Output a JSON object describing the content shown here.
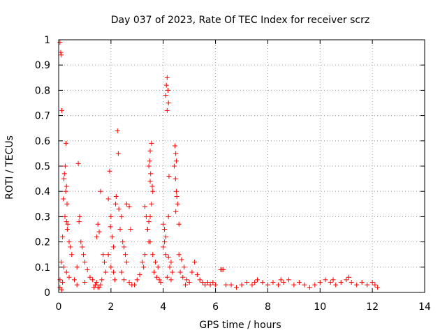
{
  "chart_data": {
    "type": "scatter",
    "title": "Day 037 of 2023, Rate Of TEC Index for receiver scrz",
    "xlabel": "GPS time / hours",
    "ylabel": "ROTI / TECUs",
    "xlim": [
      0,
      14
    ],
    "ylim": [
      0,
      1
    ],
    "x_ticks": [
      "0",
      "2",
      "4",
      "6",
      "8",
      "10",
      "12",
      "14"
    ],
    "y_ticks": [
      "0",
      "0.1",
      "0.2",
      "0.3",
      "0.4",
      "0.5",
      "0.6",
      "0.7",
      "0.8",
      "0.9",
      "1"
    ],
    "grid": true,
    "marker": "plus",
    "color": "#ff0000",
    "series": [
      {
        "name": "ROTI",
        "points": [
          [
            0.05,
            0.99
          ],
          [
            0.08,
            0.95
          ],
          [
            0.1,
            0.94
          ],
          [
            0.12,
            0.72
          ],
          [
            0.28,
            0.59
          ],
          [
            0.25,
            0.5
          ],
          [
            0.22,
            0.47
          ],
          [
            0.2,
            0.45
          ],
          [
            0.3,
            0.42
          ],
          [
            0.27,
            0.4
          ],
          [
            0.18,
            0.37
          ],
          [
            0.32,
            0.35
          ],
          [
            0.24,
            0.3
          ],
          [
            0.3,
            0.28
          ],
          [
            0.35,
            0.27
          ],
          [
            0.33,
            0.25
          ],
          [
            0.15,
            0.22
          ],
          [
            0.4,
            0.2
          ],
          [
            0.45,
            0.18
          ],
          [
            0.5,
            0.15
          ],
          [
            0.1,
            0.12
          ],
          [
            0.2,
            0.1
          ],
          [
            0.3,
            0.08
          ],
          [
            0.4,
            0.06
          ],
          [
            0.05,
            0.05
          ],
          [
            0.15,
            0.04
          ],
          [
            0.6,
            0.05
          ],
          [
            0.7,
            0.03
          ],
          [
            0.05,
            0.02
          ],
          [
            0.12,
            0.01
          ],
          [
            0.75,
            0.51
          ],
          [
            0.8,
            0.3
          ],
          [
            0.78,
            0.28
          ],
          [
            0.85,
            0.2
          ],
          [
            0.9,
            0.18
          ],
          [
            0.95,
            0.15
          ],
          [
            1.0,
            0.12
          ],
          [
            0.7,
            0.1
          ],
          [
            1.1,
            0.09
          ],
          [
            1.2,
            0.06
          ],
          [
            1.3,
            0.05
          ],
          [
            1.0,
            0.04
          ],
          [
            1.4,
            0.03
          ],
          [
            1.5,
            0.02
          ],
          [
            1.6,
            0.03
          ],
          [
            1.45,
            0.04
          ],
          [
            1.55,
            0.02
          ],
          [
            1.35,
            0.02
          ],
          [
            1.5,
            0.27
          ],
          [
            1.6,
            0.4
          ],
          [
            1.55,
            0.24
          ],
          [
            1.45,
            0.22
          ],
          [
            1.7,
            0.15
          ],
          [
            1.75,
            0.12
          ],
          [
            1.8,
            0.08
          ],
          [
            1.65,
            0.05
          ],
          [
            1.95,
            0.48
          ],
          [
            1.9,
            0.37
          ],
          [
            2.0,
            0.3
          ],
          [
            1.98,
            0.26
          ],
          [
            2.05,
            0.22
          ],
          [
            2.1,
            0.18
          ],
          [
            1.9,
            0.15
          ],
          [
            2.0,
            0.1
          ],
          [
            2.1,
            0.08
          ],
          [
            2.15,
            0.05
          ],
          [
            2.25,
            0.64
          ],
          [
            2.28,
            0.55
          ],
          [
            2.2,
            0.38
          ],
          [
            2.18,
            0.35
          ],
          [
            2.3,
            0.33
          ],
          [
            2.4,
            0.3
          ],
          [
            2.35,
            0.25
          ],
          [
            2.45,
            0.2
          ],
          [
            2.5,
            0.18
          ],
          [
            2.55,
            0.15
          ],
          [
            2.6,
            0.12
          ],
          [
            2.4,
            0.08
          ],
          [
            2.5,
            0.05
          ],
          [
            2.7,
            0.04
          ],
          [
            2.8,
            0.03
          ],
          [
            2.9,
            0.03
          ],
          [
            3.0,
            0.05
          ],
          [
            3.1,
            0.07
          ],
          [
            2.6,
            0.35
          ],
          [
            2.7,
            0.34
          ],
          [
            2.75,
            0.25
          ],
          [
            3.3,
            0.34
          ],
          [
            3.35,
            0.3
          ],
          [
            3.4,
            0.25
          ],
          [
            3.45,
            0.2
          ],
          [
            3.3,
            0.15
          ],
          [
            3.2,
            0.12
          ],
          [
            3.25,
            0.1
          ],
          [
            3.55,
            0.59
          ],
          [
            3.5,
            0.56
          ],
          [
            3.48,
            0.52
          ],
          [
            3.45,
            0.5
          ],
          [
            3.52,
            0.47
          ],
          [
            3.5,
            0.44
          ],
          [
            3.58,
            0.42
          ],
          [
            3.6,
            0.4
          ],
          [
            3.55,
            0.35
          ],
          [
            3.5,
            0.3
          ],
          [
            3.45,
            0.28
          ],
          [
            3.4,
            0.25
          ],
          [
            3.5,
            0.2
          ],
          [
            3.6,
            0.15
          ],
          [
            3.7,
            0.12
          ],
          [
            3.8,
            0.1
          ],
          [
            3.65,
            0.08
          ],
          [
            3.75,
            0.06
          ],
          [
            3.85,
            0.05
          ],
          [
            3.9,
            0.04
          ],
          [
            4.15,
            0.85
          ],
          [
            4.12,
            0.82
          ],
          [
            4.18,
            0.8
          ],
          [
            4.1,
            0.78
          ],
          [
            4.2,
            0.75
          ],
          [
            4.15,
            0.72
          ],
          [
            4.22,
            0.46
          ],
          [
            4.0,
            0.27
          ],
          [
            4.05,
            0.25
          ],
          [
            4.2,
            0.3
          ],
          [
            4.1,
            0.22
          ],
          [
            4.05,
            0.2
          ],
          [
            4.0,
            0.18
          ],
          [
            4.1,
            0.15
          ],
          [
            4.2,
            0.14
          ],
          [
            4.3,
            0.12
          ],
          [
            4.25,
            0.1
          ],
          [
            4.35,
            0.08
          ],
          [
            4.15,
            0.06
          ],
          [
            4.3,
            0.05
          ],
          [
            4.45,
            0.58
          ],
          [
            4.48,
            0.55
          ],
          [
            4.5,
            0.52
          ],
          [
            4.42,
            0.5
          ],
          [
            4.47,
            0.45
          ],
          [
            4.5,
            0.4
          ],
          [
            4.52,
            0.38
          ],
          [
            4.55,
            0.35
          ],
          [
            4.48,
            0.32
          ],
          [
            4.6,
            0.27
          ],
          [
            4.6,
            0.15
          ],
          [
            4.7,
            0.13
          ],
          [
            4.8,
            0.1
          ],
          [
            4.65,
            0.08
          ],
          [
            4.75,
            0.06
          ],
          [
            4.9,
            0.05
          ],
          [
            5.0,
            0.04
          ],
          [
            4.85,
            0.03
          ],
          [
            5.1,
            0.08
          ],
          [
            5.2,
            0.12
          ],
          [
            5.3,
            0.07
          ],
          [
            5.4,
            0.05
          ],
          [
            5.5,
            0.04
          ],
          [
            5.6,
            0.03
          ],
          [
            5.7,
            0.04
          ],
          [
            5.8,
            0.03
          ],
          [
            5.9,
            0.04
          ],
          [
            6.0,
            0.03
          ],
          [
            6.2,
            0.09
          ],
          [
            6.25,
            0.09
          ],
          [
            6.3,
            0.09
          ],
          [
            6.4,
            0.03
          ],
          [
            6.6,
            0.03
          ],
          [
            6.8,
            0.02
          ],
          [
            7.0,
            0.03
          ],
          [
            7.2,
            0.04
          ],
          [
            7.4,
            0.03
          ],
          [
            7.6,
            0.05
          ],
          [
            7.8,
            0.04
          ],
          [
            8.0,
            0.03
          ],
          [
            8.2,
            0.04
          ],
          [
            8.4,
            0.03
          ],
          [
            8.6,
            0.04
          ],
          [
            8.8,
            0.05
          ],
          [
            9.0,
            0.03
          ],
          [
            9.2,
            0.04
          ],
          [
            9.4,
            0.03
          ],
          [
            9.6,
            0.02
          ],
          [
            9.8,
            0.03
          ],
          [
            10.0,
            0.04
          ],
          [
            10.2,
            0.05
          ],
          [
            10.4,
            0.04
          ],
          [
            10.6,
            0.03
          ],
          [
            10.8,
            0.04
          ],
          [
            11.0,
            0.05
          ],
          [
            11.2,
            0.04
          ],
          [
            11.4,
            0.03
          ],
          [
            11.6,
            0.04
          ],
          [
            11.8,
            0.03
          ],
          [
            12.0,
            0.04
          ],
          [
            12.1,
            0.03
          ],
          [
            12.2,
            0.02
          ],
          [
            11.1,
            0.06
          ],
          [
            10.5,
            0.05
          ],
          [
            8.5,
            0.05
          ],
          [
            7.5,
            0.04
          ]
        ]
      }
    ]
  }
}
